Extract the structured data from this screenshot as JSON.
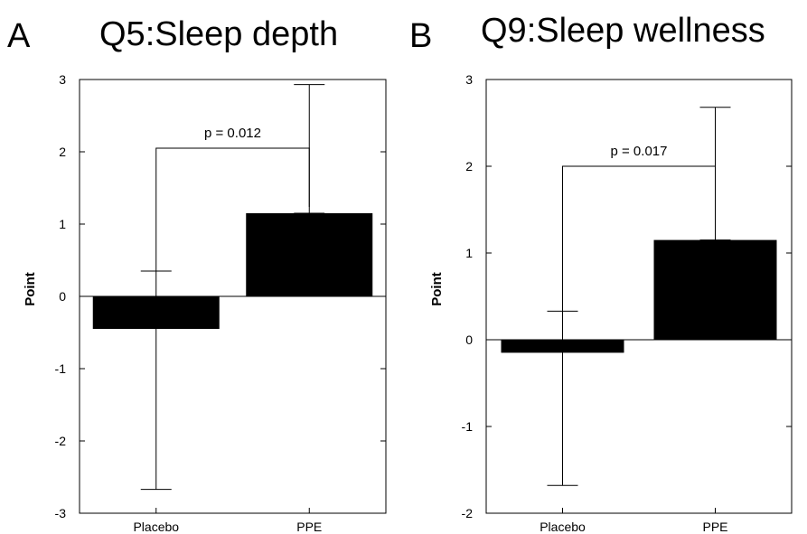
{
  "chart_data": [
    {
      "type": "bar",
      "panel_label": "A",
      "title": "Q5:Sleep depth",
      "ylabel": "Point",
      "xlabel": "",
      "categories": [
        "Placebo",
        "PPE"
      ],
      "values": [
        -0.45,
        1.15
      ],
      "error_upper": [
        0.35,
        2.93
      ],
      "error_lower": [
        -2.67,
        1.15
      ],
      "ylim": [
        -3,
        3
      ],
      "yticks": [
        3,
        2,
        1,
        0,
        -1,
        -2,
        -3
      ],
      "bar_color": "#000000",
      "annotation": {
        "text": "p = 0.012",
        "y": 2.05
      }
    },
    {
      "type": "bar",
      "panel_label": "B",
      "title": "Q9:Sleep wellness",
      "ylabel": "Point",
      "xlabel": "",
      "categories": [
        "Placebo",
        "PPE"
      ],
      "values": [
        -0.15,
        1.15
      ],
      "error_upper": [
        0.33,
        2.68
      ],
      "error_lower": [
        -1.68,
        1.15
      ],
      "ylim": [
        -2,
        3
      ],
      "yticks": [
        3,
        2,
        1,
        0,
        -1,
        -2
      ],
      "bar_color": "#000000",
      "annotation": {
        "text": "p = 0.017",
        "y": 2.0
      }
    }
  ]
}
